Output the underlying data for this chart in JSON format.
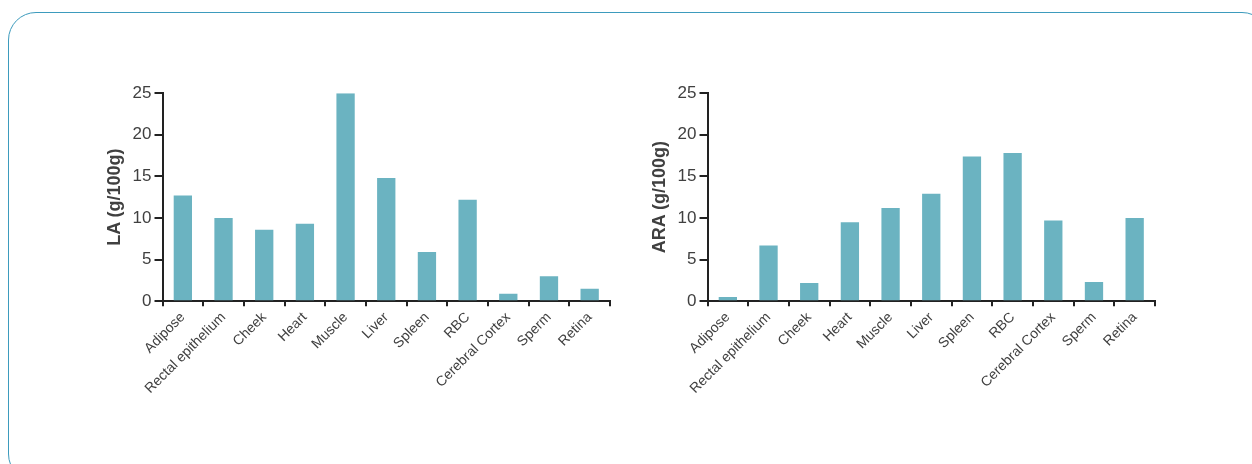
{
  "chart_data": [
    {
      "type": "bar",
      "ylabel": "LA (g/100g)",
      "categories": [
        "Adipose",
        "Rectal epithelium",
        "Cheek",
        "Heart",
        "Muscle",
        "Liver",
        "Spleen",
        "RBC",
        "Cerebral Cortex",
        "Sperm",
        "Retina"
      ],
      "values": [
        12.7,
        10.0,
        8.6,
        9.3,
        25.0,
        14.8,
        5.9,
        12.2,
        0.9,
        3.0,
        1.5
      ],
      "color": "#6bb3c1",
      "ylim": [
        0,
        25
      ],
      "yticks": [
        0,
        5,
        10,
        15,
        20,
        25
      ],
      "grid": false,
      "legend": false
    },
    {
      "type": "bar",
      "ylabel": "ARA (g/100g)",
      "categories": [
        "Adipose",
        "Rectal epithelium",
        "Cheek",
        "Heart",
        "Muscle",
        "Liver",
        "Spleen",
        "RBC",
        "Cerebral Cortex",
        "Sperm",
        "Retina"
      ],
      "values": [
        0.5,
        6.7,
        2.2,
        9.5,
        11.2,
        12.9,
        17.4,
        17.8,
        9.7,
        2.3,
        10.0
      ],
      "color": "#6bb3c1",
      "ylim": [
        0,
        25
      ],
      "yticks": [
        0,
        5,
        10,
        15,
        20,
        25
      ],
      "grid": false,
      "legend": false
    }
  ]
}
